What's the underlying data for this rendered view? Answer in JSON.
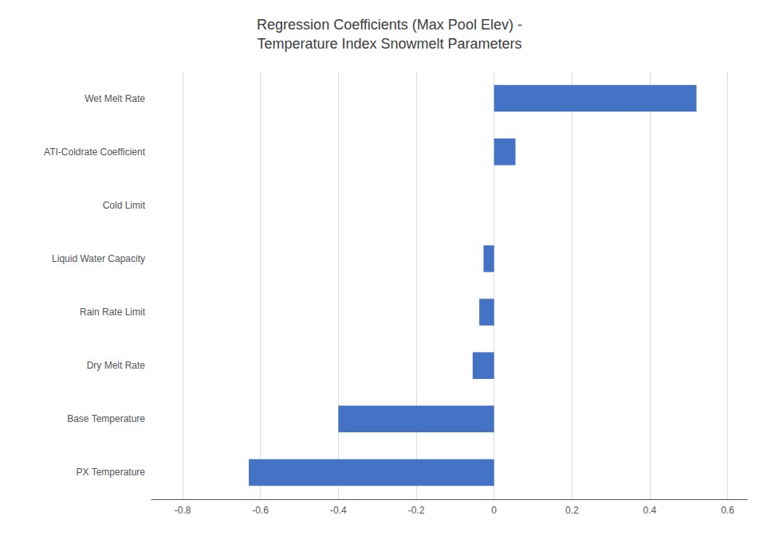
{
  "chart_data": {
    "type": "bar",
    "orientation": "horizontal",
    "title": "Regression Coefficients (Max Pool Elev) -\nTemperature Index Snowmelt Parameters",
    "categories": [
      "PX Temperature",
      "Base Temperature",
      "Dry Melt Rate",
      "Rain Rate Limit",
      "Liquid Water Capacity",
      "Cold Limit",
      "ATI-Coldrate Coefficient",
      "Wet Melt Rate"
    ],
    "values": [
      -0.63,
      -0.4,
      -0.055,
      -0.038,
      -0.027,
      0.0,
      0.055,
      0.52
    ],
    "color": "#4472C4",
    "xlim": [
      -0.88,
      0.65
    ],
    "xticks": [
      -0.8,
      -0.6,
      -0.4,
      -0.2,
      0,
      0.2,
      0.4,
      0.6
    ],
    "grid": true
  }
}
